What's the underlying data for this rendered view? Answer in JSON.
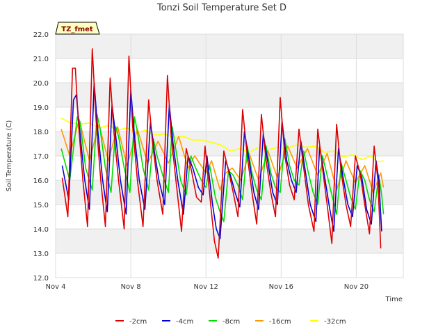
{
  "chart_data": {
    "type": "line",
    "title": "Tonzi Soil Temperature Set D",
    "xlabel": "Time",
    "ylabel": "Soil Temperature (C)",
    "badge": "TZ_fmet",
    "ylim": [
      12.0,
      22.0
    ],
    "yticks": [
      "12.0",
      "13.0",
      "14.0",
      "15.0",
      "16.0",
      "17.0",
      "18.0",
      "19.0",
      "20.0",
      "21.0",
      "22.0"
    ],
    "xlim": [
      4.0,
      22.5
    ],
    "xticks": [
      {
        "label": "Nov 4",
        "day": 4
      },
      {
        "label": "Nov 8",
        "day": 8
      },
      {
        "label": "Nov 12",
        "day": 12
      },
      {
        "label": "Nov 16",
        "day": 16
      },
      {
        "label": "Nov 20",
        "day": 20
      }
    ],
    "grid": true,
    "legend_position": "bottom",
    "series": [
      {
        "name": "-2cm",
        "color": "#dd0000",
        "points": [
          [
            4.35,
            16.1
          ],
          [
            4.65,
            14.5
          ],
          [
            4.9,
            20.6
          ],
          [
            5.05,
            20.6
          ],
          [
            5.2,
            18.5
          ],
          [
            5.45,
            16.0
          ],
          [
            5.7,
            14.1
          ],
          [
            5.95,
            21.4
          ],
          [
            6.15,
            18.5
          ],
          [
            6.4,
            16.0
          ],
          [
            6.65,
            14.1
          ],
          [
            6.9,
            20.2
          ],
          [
            7.1,
            18.0
          ],
          [
            7.35,
            16.0
          ],
          [
            7.65,
            14.0
          ],
          [
            7.9,
            21.1
          ],
          [
            8.1,
            18.2
          ],
          [
            8.35,
            16.0
          ],
          [
            8.65,
            14.1
          ],
          [
            8.95,
            19.3
          ],
          [
            9.15,
            17.6
          ],
          [
            9.4,
            16.0
          ],
          [
            9.7,
            14.6
          ],
          [
            9.95,
            20.3
          ],
          [
            10.15,
            17.8
          ],
          [
            10.4,
            16.0
          ],
          [
            10.7,
            13.9
          ],
          [
            10.95,
            17.3
          ],
          [
            11.2,
            16.5
          ],
          [
            11.5,
            15.3
          ],
          [
            11.75,
            15.1
          ],
          [
            11.95,
            17.4
          ],
          [
            12.25,
            15.0
          ],
          [
            12.45,
            13.5
          ],
          [
            12.65,
            12.8
          ],
          [
            12.95,
            17.2
          ],
          [
            13.2,
            16.4
          ],
          [
            13.45,
            15.5
          ],
          [
            13.7,
            14.5
          ],
          [
            13.95,
            18.9
          ],
          [
            14.2,
            17.0
          ],
          [
            14.45,
            15.5
          ],
          [
            14.7,
            14.2
          ],
          [
            14.95,
            18.7
          ],
          [
            15.2,
            16.8
          ],
          [
            15.45,
            15.5
          ],
          [
            15.7,
            14.5
          ],
          [
            15.95,
            19.4
          ],
          [
            16.2,
            17.0
          ],
          [
            16.45,
            15.8
          ],
          [
            16.7,
            15.2
          ],
          [
            16.95,
            18.1
          ],
          [
            17.2,
            16.5
          ],
          [
            17.45,
            15.0
          ],
          [
            17.75,
            13.9
          ],
          [
            17.95,
            18.1
          ],
          [
            18.2,
            16.5
          ],
          [
            18.45,
            15.0
          ],
          [
            18.7,
            13.4
          ],
          [
            18.95,
            18.3
          ],
          [
            19.2,
            16.3
          ],
          [
            19.45,
            15.0
          ],
          [
            19.7,
            14.1
          ],
          [
            19.95,
            17.0
          ],
          [
            20.2,
            16.3
          ],
          [
            20.45,
            15.0
          ],
          [
            20.7,
            13.8
          ],
          [
            20.95,
            17.4
          ],
          [
            21.15,
            16.0
          ],
          [
            21.3,
            13.2
          ]
        ]
      },
      {
        "name": "-4cm",
        "color": "#0000dd",
        "points": [
          [
            4.35,
            16.6
          ],
          [
            4.7,
            15.2
          ],
          [
            4.95,
            19.3
          ],
          [
            5.1,
            19.5
          ],
          [
            5.35,
            17.5
          ],
          [
            5.55,
            16.0
          ],
          [
            5.8,
            14.8
          ],
          [
            6.05,
            20.0
          ],
          [
            6.25,
            18.0
          ],
          [
            6.5,
            16.0
          ],
          [
            6.75,
            14.7
          ],
          [
            7.0,
            19.1
          ],
          [
            7.2,
            17.8
          ],
          [
            7.45,
            16.0
          ],
          [
            7.75,
            14.6
          ],
          [
            8.0,
            19.7
          ],
          [
            8.2,
            17.8
          ],
          [
            8.45,
            16.0
          ],
          [
            8.75,
            14.8
          ],
          [
            9.05,
            18.4
          ],
          [
            9.25,
            17.2
          ],
          [
            9.5,
            16.0
          ],
          [
            9.8,
            15.0
          ],
          [
            10.05,
            19.1
          ],
          [
            10.25,
            17.5
          ],
          [
            10.5,
            16.0
          ],
          [
            10.8,
            14.6
          ],
          [
            11.05,
            17.0
          ],
          [
            11.3,
            16.5
          ],
          [
            11.6,
            15.7
          ],
          [
            11.85,
            15.4
          ],
          [
            12.05,
            17.0
          ],
          [
            12.35,
            15.0
          ],
          [
            12.55,
            14.0
          ],
          [
            12.75,
            13.6
          ],
          [
            13.05,
            16.8
          ],
          [
            13.3,
            16.2
          ],
          [
            13.55,
            15.5
          ],
          [
            13.8,
            14.9
          ],
          [
            14.05,
            18.0
          ],
          [
            14.3,
            16.8
          ],
          [
            14.55,
            15.5
          ],
          [
            14.8,
            14.8
          ],
          [
            15.05,
            17.9
          ],
          [
            15.3,
            16.7
          ],
          [
            15.55,
            15.5
          ],
          [
            15.8,
            15.0
          ],
          [
            16.05,
            18.4
          ],
          [
            16.3,
            16.8
          ],
          [
            16.55,
            16.0
          ],
          [
            16.8,
            15.5
          ],
          [
            17.05,
            17.6
          ],
          [
            17.3,
            16.3
          ],
          [
            17.55,
            15.0
          ],
          [
            17.85,
            14.3
          ],
          [
            18.05,
            17.4
          ],
          [
            18.3,
            16.2
          ],
          [
            18.55,
            15.0
          ],
          [
            18.8,
            13.9
          ],
          [
            19.05,
            17.3
          ],
          [
            19.3,
            16.1
          ],
          [
            19.55,
            15.0
          ],
          [
            19.8,
            14.5
          ],
          [
            20.05,
            16.6
          ],
          [
            20.3,
            16.1
          ],
          [
            20.55,
            14.8
          ],
          [
            20.8,
            14.2
          ],
          [
            21.05,
            16.8
          ],
          [
            21.2,
            16.0
          ],
          [
            21.35,
            13.9
          ]
        ]
      },
      {
        "name": "-8cm",
        "color": "#00dd00",
        "points": [
          [
            4.3,
            17.3
          ],
          [
            4.75,
            16.0
          ],
          [
            5.15,
            18.6
          ],
          [
            5.3,
            18.4
          ],
          [
            5.6,
            16.5
          ],
          [
            5.95,
            15.6
          ],
          [
            6.2,
            18.7
          ],
          [
            6.35,
            18.2
          ],
          [
            6.65,
            16.5
          ],
          [
            6.95,
            15.5
          ],
          [
            7.2,
            18.2
          ],
          [
            7.35,
            17.8
          ],
          [
            7.65,
            16.5
          ],
          [
            7.95,
            15.5
          ],
          [
            8.2,
            18.6
          ],
          [
            8.35,
            18.0
          ],
          [
            8.65,
            16.5
          ],
          [
            8.95,
            15.6
          ],
          [
            9.2,
            17.7
          ],
          [
            9.4,
            17.0
          ],
          [
            9.7,
            16.2
          ],
          [
            10.0,
            15.5
          ],
          [
            10.2,
            18.2
          ],
          [
            10.35,
            17.5
          ],
          [
            10.65,
            16.0
          ],
          [
            10.95,
            15.4
          ],
          [
            11.2,
            17.0
          ],
          [
            11.45,
            16.5
          ],
          [
            11.75,
            16.0
          ],
          [
            12.0,
            15.7
          ],
          [
            12.2,
            16.6
          ],
          [
            12.5,
            15.3
          ],
          [
            12.75,
            14.7
          ],
          [
            12.95,
            14.3
          ],
          [
            13.2,
            16.4
          ],
          [
            13.45,
            16.2
          ],
          [
            13.7,
            15.8
          ],
          [
            13.95,
            15.2
          ],
          [
            14.2,
            17.4
          ],
          [
            14.45,
            16.3
          ],
          [
            14.7,
            15.6
          ],
          [
            14.95,
            15.2
          ],
          [
            15.2,
            17.4
          ],
          [
            15.45,
            16.3
          ],
          [
            15.7,
            15.7
          ],
          [
            15.95,
            15.5
          ],
          [
            16.2,
            17.7
          ],
          [
            16.45,
            16.6
          ],
          [
            16.7,
            16.0
          ],
          [
            16.95,
            15.8
          ],
          [
            17.2,
            17.2
          ],
          [
            17.45,
            16.3
          ],
          [
            17.7,
            15.5
          ],
          [
            17.95,
            15.0
          ],
          [
            18.2,
            17.0
          ],
          [
            18.45,
            16.2
          ],
          [
            18.7,
            15.4
          ],
          [
            18.95,
            14.6
          ],
          [
            19.2,
            16.7
          ],
          [
            19.45,
            16.0
          ],
          [
            19.7,
            15.3
          ],
          [
            19.95,
            14.8
          ],
          [
            20.2,
            16.4
          ],
          [
            20.45,
            16.0
          ],
          [
            20.7,
            15.2
          ],
          [
            20.95,
            14.7
          ],
          [
            21.2,
            16.2
          ],
          [
            21.35,
            15.4
          ],
          [
            21.45,
            14.6
          ]
        ]
      },
      {
        "name": "-16cm",
        "color": "#ff9900",
        "points": [
          [
            4.3,
            18.1
          ],
          [
            4.75,
            17.0
          ],
          [
            5.25,
            18.5
          ],
          [
            5.8,
            16.8
          ],
          [
            6.3,
            18.3
          ],
          [
            6.8,
            16.8
          ],
          [
            7.3,
            18.2
          ],
          [
            7.8,
            16.6
          ],
          [
            8.35,
            18.1
          ],
          [
            8.9,
            16.7
          ],
          [
            9.45,
            17.6
          ],
          [
            10.0,
            16.7
          ],
          [
            10.55,
            17.8
          ],
          [
            11.05,
            16.5
          ],
          [
            11.4,
            17.0
          ],
          [
            12.0,
            16.3
          ],
          [
            12.3,
            16.8
          ],
          [
            12.75,
            15.6
          ],
          [
            13.05,
            16.3
          ],
          [
            13.4,
            16.5
          ],
          [
            13.85,
            16.0
          ],
          [
            14.3,
            17.1
          ],
          [
            14.8,
            16.0
          ],
          [
            15.3,
            17.2
          ],
          [
            15.8,
            16.1
          ],
          [
            16.35,
            17.4
          ],
          [
            16.85,
            16.5
          ],
          [
            17.4,
            17.3
          ],
          [
            17.95,
            16.2
          ],
          [
            18.45,
            17.1
          ],
          [
            18.95,
            15.6
          ],
          [
            19.45,
            16.8
          ],
          [
            19.95,
            15.9
          ],
          [
            20.45,
            16.6
          ],
          [
            20.9,
            15.5
          ],
          [
            21.3,
            16.3
          ],
          [
            21.45,
            15.7
          ]
        ]
      },
      {
        "name": "-32cm",
        "color": "#ffff00",
        "points": [
          [
            4.3,
            18.55
          ],
          [
            4.8,
            18.35
          ],
          [
            5.3,
            18.3
          ],
          [
            5.8,
            18.35
          ],
          [
            6.3,
            18.15
          ],
          [
            6.8,
            18.25
          ],
          [
            7.3,
            18.05
          ],
          [
            7.8,
            18.15
          ],
          [
            8.3,
            17.95
          ],
          [
            8.8,
            18.05
          ],
          [
            9.3,
            17.85
          ],
          [
            9.8,
            17.9
          ],
          [
            10.3,
            17.75
          ],
          [
            10.8,
            17.8
          ],
          [
            11.3,
            17.65
          ],
          [
            11.8,
            17.65
          ],
          [
            12.3,
            17.55
          ],
          [
            12.8,
            17.45
          ],
          [
            13.3,
            17.2
          ],
          [
            13.8,
            17.3
          ],
          [
            14.3,
            17.15
          ],
          [
            14.8,
            17.35
          ],
          [
            15.3,
            17.25
          ],
          [
            15.8,
            17.35
          ],
          [
            16.3,
            17.3
          ],
          [
            16.8,
            17.45
          ],
          [
            17.3,
            17.35
          ],
          [
            17.8,
            17.4
          ],
          [
            18.3,
            17.15
          ],
          [
            18.8,
            17.2
          ],
          [
            19.3,
            16.95
          ],
          [
            19.8,
            17.05
          ],
          [
            20.3,
            16.85
          ],
          [
            20.8,
            17.0
          ],
          [
            21.1,
            16.75
          ],
          [
            21.45,
            16.8
          ]
        ]
      }
    ]
  }
}
